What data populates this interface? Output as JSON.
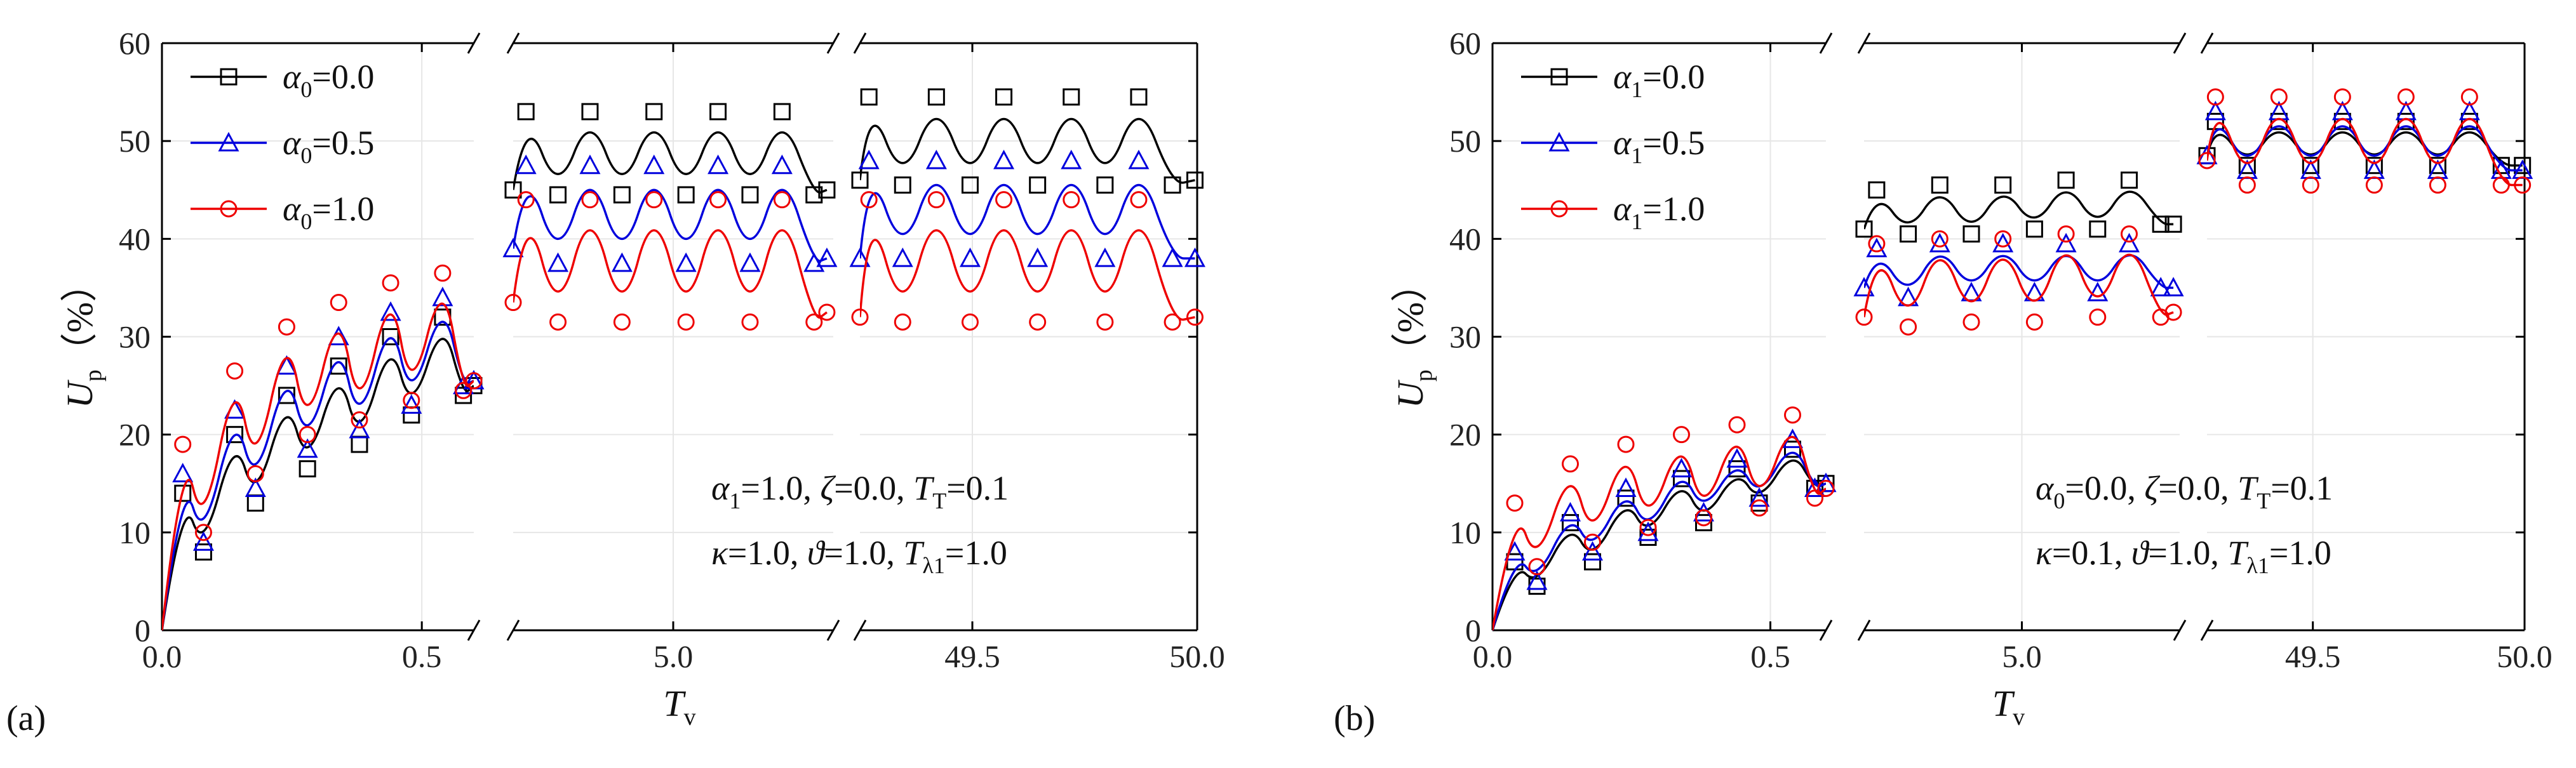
{
  "figure": {
    "panels": [
      {
        "id": "a",
        "label": "(a)",
        "ylabel": {
          "main": "U",
          "sub": "p",
          "unit": "（%）"
        },
        "xlabel": {
          "main": "T",
          "sub": "v"
        },
        "legend": [
          {
            "greek": "α",
            "sub": "0",
            "text": "=0.0"
          },
          {
            "greek": "α",
            "sub": "0",
            "text": "=0.5"
          },
          {
            "greek": "α",
            "sub": "0",
            "text": "=1.0"
          }
        ],
        "params": [
          [
            {
              "t": "α",
              "i": true
            },
            {
              "t": "1",
              "s": true
            },
            {
              "t": "=1.0,  "
            },
            {
              "t": "ζ",
              "i": true
            },
            {
              "t": "=0.0,  "
            },
            {
              "t": "T",
              "i": true
            },
            {
              "t": "T",
              "s": true
            },
            {
              "t": "=0.1"
            }
          ],
          [
            {
              "t": "κ",
              "i": true
            },
            {
              "t": "=1.0,  "
            },
            {
              "t": "ϑ",
              "i": true
            },
            {
              "t": "=1.0,  "
            },
            {
              "t": "T",
              "i": true
            },
            {
              "t": "λ1",
              "s": true
            },
            {
              "t": "=1.0"
            }
          ]
        ]
      },
      {
        "id": "b",
        "label": "(b)",
        "ylabel": {
          "main": "U",
          "sub": "p",
          "unit": "（%）"
        },
        "xlabel": {
          "main": "T",
          "sub": "v"
        },
        "legend": [
          {
            "greek": "α",
            "sub": "1",
            "text": "=0.0"
          },
          {
            "greek": "α",
            "sub": "1",
            "text": "=0.5"
          },
          {
            "greek": "α",
            "sub": "1",
            "text": "=1.0"
          }
        ],
        "params": [
          [
            {
              "t": "α",
              "i": true
            },
            {
              "t": "0",
              "s": true
            },
            {
              "t": "=0.0,  "
            },
            {
              "t": "ζ",
              "i": true
            },
            {
              "t": "=0.0,  "
            },
            {
              "t": "T",
              "i": true
            },
            {
              "t": "T",
              "s": true
            },
            {
              "t": "=0.1"
            }
          ],
          [
            {
              "t": "κ",
              "i": true
            },
            {
              "t": "=0.1,  "
            },
            {
              "t": "ϑ",
              "i": true
            },
            {
              "t": "=1.0,  "
            },
            {
              "t": "T",
              "i": true
            },
            {
              "t": "λ1",
              "s": true
            },
            {
              "t": "=1.0"
            }
          ]
        ]
      }
    ]
  },
  "chart_data": [
    {
      "type": "line",
      "panel": "a",
      "ylim": [
        0,
        60
      ],
      "yticks": [
        0,
        10,
        20,
        30,
        40,
        50,
        60
      ],
      "xlabel": "Tv",
      "ylabel": "Up (%)",
      "grid": true,
      "broken_x_axis": true,
      "segments": [
        {
          "xlim": [
            0,
            0.6
          ],
          "xticks": [
            0.0,
            0.5
          ],
          "tick_labels": [
            "0.0",
            "0.5"
          ]
        },
        {
          "xlim": [
            4.75,
            5.25
          ],
          "xticks": [
            5.0
          ],
          "tick_labels": [
            "5.0"
          ]
        },
        {
          "xlim": [
            49.25,
            50.0
          ],
          "xticks": [
            49.5,
            50.0
          ],
          "tick_labels": [
            "49.5",
            "50.0"
          ]
        }
      ],
      "series": [
        {
          "name": "α0=0.0",
          "color": "#000000",
          "marker": "square",
          "segments": [
            {
              "x": [
                0,
                0.04,
                0.08,
                0.14,
                0.18,
                0.24,
                0.28,
                0.34,
                0.38,
                0.44,
                0.48,
                0.54,
                0.58,
                0.6
              ],
              "y": [
                0,
                14,
                8,
                20,
                13,
                24,
                16.5,
                27,
                19,
                30,
                22,
                32,
                24,
                25
              ]
            },
            {
              "x": [
                4.75,
                4.77,
                4.82,
                4.87,
                4.92,
                4.97,
                5.02,
                5.07,
                5.12,
                5.17,
                5.22,
                5.24
              ],
              "y": [
                45,
                53,
                44.5,
                53,
                44.5,
                53,
                44.5,
                53,
                44.5,
                53,
                44.5,
                45
              ]
            },
            {
              "x": [
                49.25,
                49.27,
                49.345,
                49.42,
                49.495,
                49.57,
                49.645,
                49.72,
                49.795,
                49.87,
                49.945,
                49.995
              ],
              "y": [
                46,
                54.5,
                45.5,
                54.5,
                45.5,
                54.5,
                45.5,
                54.5,
                45.5,
                54.5,
                45.5,
                46
              ]
            }
          ]
        },
        {
          "name": "α0=0.5",
          "color": "#0000dd",
          "marker": "triangle",
          "segments": [
            {
              "x": [
                0,
                0.04,
                0.08,
                0.14,
                0.18,
                0.24,
                0.28,
                0.34,
                0.38,
                0.44,
                0.48,
                0.54,
                0.58,
                0.6
              ],
              "y": [
                0,
                16,
                9,
                22.5,
                14.5,
                27,
                18.5,
                30,
                20.5,
                32.5,
                23,
                34,
                25,
                25.5
              ]
            },
            {
              "x": [
                4.75,
                4.77,
                4.82,
                4.87,
                4.92,
                4.97,
                5.02,
                5.07,
                5.12,
                5.17,
                5.22,
                5.24
              ],
              "y": [
                39,
                47.5,
                37.5,
                47.5,
                37.5,
                47.5,
                37.5,
                47.5,
                37.5,
                47.5,
                37.5,
                38
              ]
            },
            {
              "x": [
                49.25,
                49.27,
                49.345,
                49.42,
                49.495,
                49.57,
                49.645,
                49.72,
                49.795,
                49.87,
                49.945,
                49.995
              ],
              "y": [
                38,
                48,
                38,
                48,
                38,
                48,
                38,
                48,
                38,
                48,
                38,
                38
              ]
            }
          ]
        },
        {
          "name": "α0=1.0",
          "color": "#ee0000",
          "marker": "circle",
          "segments": [
            {
              "x": [
                0,
                0.04,
                0.08,
                0.14,
                0.18,
                0.24,
                0.28,
                0.34,
                0.38,
                0.44,
                0.48,
                0.54,
                0.58,
                0.6
              ],
              "y": [
                0,
                19,
                10,
                26.5,
                16,
                31,
                20,
                33.5,
                21.5,
                35.5,
                23.5,
                36.5,
                24.5,
                25.5
              ]
            },
            {
              "x": [
                4.75,
                4.77,
                4.82,
                4.87,
                4.92,
                4.97,
                5.02,
                5.07,
                5.12,
                5.17,
                5.22,
                5.24
              ],
              "y": [
                33.5,
                44,
                31.5,
                44,
                31.5,
                44,
                31.5,
                44,
                31.5,
                44,
                31.5,
                32.5
              ]
            },
            {
              "x": [
                49.25,
                49.27,
                49.345,
                49.42,
                49.495,
                49.57,
                49.645,
                49.72,
                49.795,
                49.87,
                49.945,
                49.995
              ],
              "y": [
                32,
                44,
                31.5,
                44,
                31.5,
                44,
                31.5,
                44,
                31.5,
                44,
                31.5,
                32
              ]
            }
          ]
        }
      ]
    },
    {
      "type": "line",
      "panel": "b",
      "ylim": [
        0,
        60
      ],
      "yticks": [
        0,
        10,
        20,
        30,
        40,
        50,
        60
      ],
      "xlabel": "Tv",
      "ylabel": "Up (%)",
      "grid": true,
      "broken_x_axis": true,
      "segments": [
        {
          "xlim": [
            0,
            0.6
          ],
          "xticks": [
            0.0,
            0.5
          ],
          "tick_labels": [
            "0.0",
            "0.5"
          ]
        },
        {
          "xlim": [
            4.75,
            5.25
          ],
          "xticks": [
            5.0
          ],
          "tick_labels": [
            "5.0"
          ]
        },
        {
          "xlim": [
            49.25,
            50.0
          ],
          "xticks": [
            49.5,
            50.0
          ],
          "tick_labels": [
            "49.5",
            "50.0"
          ]
        }
      ],
      "series": [
        {
          "name": "α1=0.0",
          "color": "#000000",
          "marker": "square",
          "segments": [
            {
              "x": [
                0,
                0.04,
                0.08,
                0.14,
                0.18,
                0.24,
                0.28,
                0.34,
                0.38,
                0.44,
                0.48,
                0.54,
                0.58,
                0.6
              ],
              "y": [
                0,
                7,
                4.5,
                11,
                7,
                13.5,
                9.5,
                15.5,
                11,
                16.5,
                13,
                18.5,
                14.5,
                15
              ]
            },
            {
              "x": [
                4.75,
                4.77,
                4.82,
                4.87,
                4.92,
                4.97,
                5.02,
                5.07,
                5.12,
                5.17,
                5.22,
                5.24
              ],
              "y": [
                41,
                45,
                40.5,
                45.5,
                40.5,
                45.5,
                41,
                46,
                41,
                46,
                41.5,
                41.5
              ]
            },
            {
              "x": [
                49.25,
                49.27,
                49.345,
                49.42,
                49.495,
                49.57,
                49.645,
                49.72,
                49.795,
                49.87,
                49.945,
                49.995
              ],
              "y": [
                48.5,
                52,
                47.5,
                52,
                47.5,
                52,
                47.5,
                52,
                47.5,
                52,
                47.5,
                47.5
              ]
            }
          ]
        },
        {
          "name": "α1=0.5",
          "color": "#0000dd",
          "marker": "triangle",
          "segments": [
            {
              "x": [
                0,
                0.04,
                0.08,
                0.14,
                0.18,
                0.24,
                0.28,
                0.34,
                0.38,
                0.44,
                0.48,
                0.54,
                0.58,
                0.6
              ],
              "y": [
                0,
                8,
                5,
                12,
                8,
                14.5,
                10,
                16.5,
                12,
                17.5,
                13.5,
                19.5,
                14.5,
                15
              ]
            },
            {
              "x": [
                4.75,
                4.77,
                4.82,
                4.87,
                4.92,
                4.97,
                5.02,
                5.07,
                5.12,
                5.17,
                5.22,
                5.24
              ],
              "y": [
                35,
                39,
                34,
                39.5,
                34.5,
                39.5,
                34.5,
                39.5,
                34.5,
                39.5,
                35,
                35
              ]
            },
            {
              "x": [
                49.25,
                49.27,
                49.345,
                49.42,
                49.495,
                49.57,
                49.645,
                49.72,
                49.795,
                49.87,
                49.945,
                49.995
              ],
              "y": [
                48.5,
                53,
                47,
                53,
                47,
                53,
                47,
                53,
                47,
                53,
                47,
                47
              ]
            }
          ]
        },
        {
          "name": "α1=1.0",
          "color": "#ee0000",
          "marker": "circle",
          "segments": [
            {
              "x": [
                0,
                0.04,
                0.08,
                0.14,
                0.18,
                0.24,
                0.28,
                0.34,
                0.38,
                0.44,
                0.48,
                0.54,
                0.58,
                0.6
              ],
              "y": [
                0,
                13,
                6.5,
                17,
                9,
                19,
                10.5,
                20,
                11.5,
                21,
                12.5,
                22,
                13.5,
                14.5
              ]
            },
            {
              "x": [
                4.75,
                4.77,
                4.82,
                4.87,
                4.92,
                4.97,
                5.02,
                5.07,
                5.12,
                5.17,
                5.22,
                5.24
              ],
              "y": [
                32,
                39.5,
                31,
                40,
                31.5,
                40,
                31.5,
                40.5,
                32,
                40.5,
                32,
                32.5
              ]
            },
            {
              "x": [
                49.25,
                49.27,
                49.345,
                49.42,
                49.495,
                49.57,
                49.645,
                49.72,
                49.795,
                49.87,
                49.945,
                49.995
              ],
              "y": [
                48,
                54.5,
                45.5,
                54.5,
                45.5,
                54.5,
                45.5,
                54.5,
                45.5,
                54.5,
                45.5,
                45.5
              ]
            }
          ]
        }
      ]
    }
  ]
}
